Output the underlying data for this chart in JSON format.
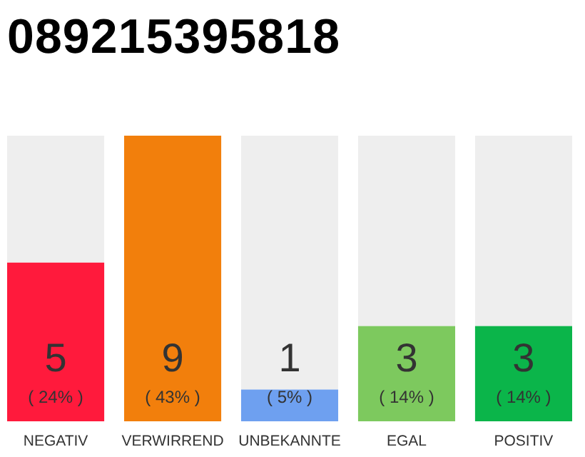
{
  "chart_data": {
    "type": "bar",
    "title": "089215395818",
    "categories": [
      "NEGATIV",
      "VERWIRREND",
      "UNBEKANNTE",
      "EGAL",
      "POSITIV"
    ],
    "values": [
      5,
      9,
      1,
      3,
      3
    ],
    "colors": [
      "#ff1a3c",
      "#f27f0c",
      "#6ea0f0",
      "#7dc95e",
      "#0bb54a"
    ],
    "data_labels": true,
    "annotations": [
      "( 24% )",
      "( 43% )",
      "( 5% )",
      "( 14% )",
      "( 14% )"
    ]
  }
}
